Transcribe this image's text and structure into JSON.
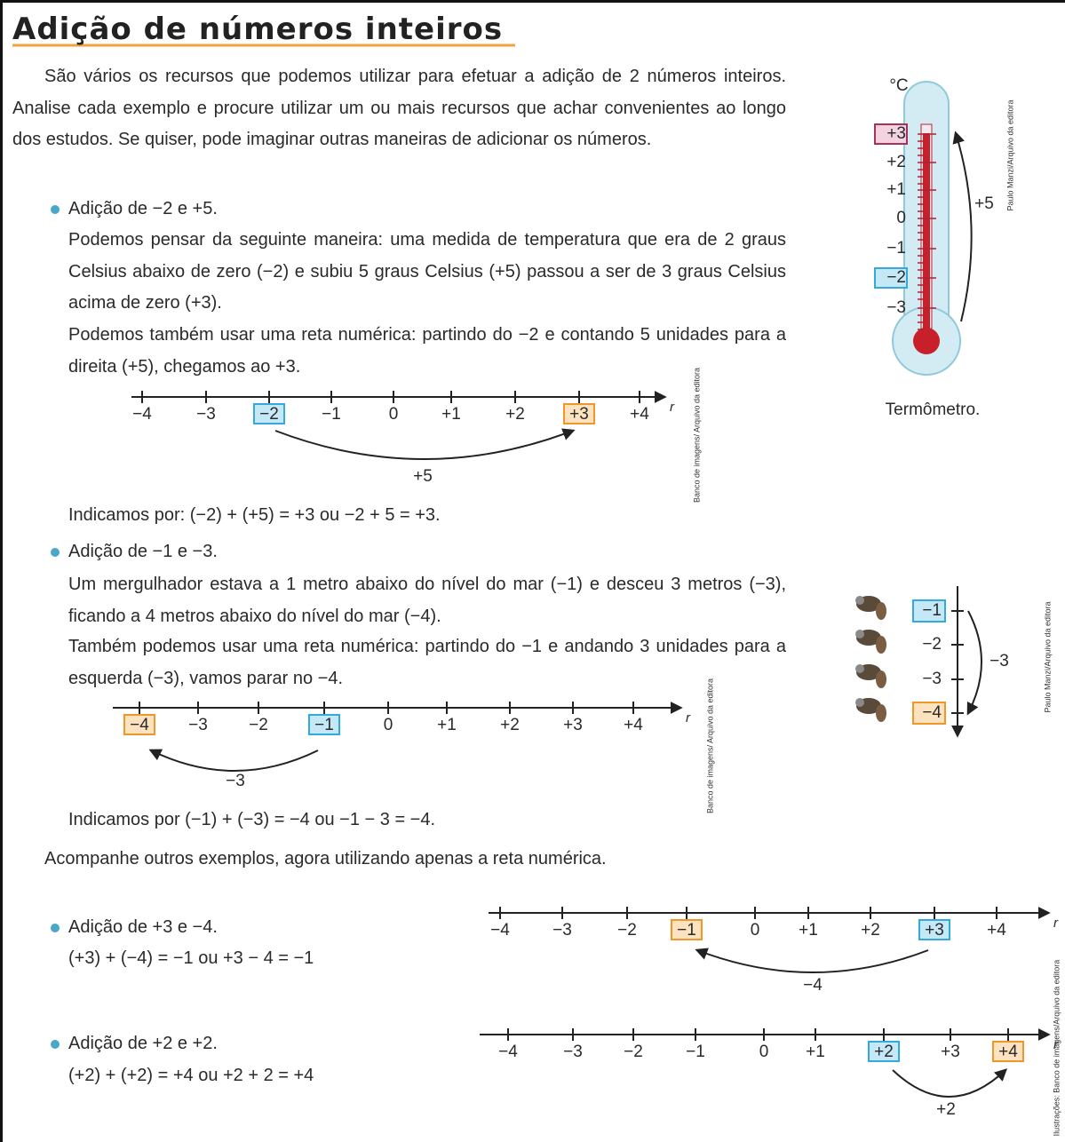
{
  "header": {
    "title": "Adição de números inteiros"
  },
  "intro": "São vários os recursos que podemos utilizar para efetuar a adição de 2 números inteiros. Analise cada exemplo e procure utilizar um ou mais recursos que achar convenientes ao longo dos estudos. Se quiser, pode imaginar outras maneiras de adicionar os números.",
  "examples": [
    {
      "heading": "Adição de −2 e +5.",
      "paragraphs": [
        "Podemos pensar da seguinte maneira: uma medida de temperatura que era de 2 graus Celsius abaixo de zero (−2) e subiu 5 graus Celsius (+5) passou a ser de 3 graus Celsius acima de zero (+3).",
        "Podemos também usar uma reta numérica: partindo do −2 e contando 5 unidades para a direita (+5), chegamos ao +3."
      ],
      "number_line": {
        "ticks": [
          "−4",
          "−3",
          "−2",
          "−1",
          "0",
          "+1",
          "+2",
          "+3",
          "+4"
        ],
        "axis_label": "r",
        "arrow_label": "+5",
        "credit": "Banco de imagens/ Arquivo da editora"
      },
      "result": "Indicamos por: (−2) + (+5) = +3 ou −2 + 5 = +3."
    },
    {
      "heading": "Adição de −1 e −3.",
      "paragraphs": [
        "Um mergulhador estava a 1 metro abaixo do nível do mar (−1) e desceu 3 metros (−3), ficando a 4 metros abaixo do nível do mar (−4).",
        "Também podemos usar uma reta numérica: partindo do −1 e andando 3 unidades para a esquerda (−3), vamos parar no −4."
      ],
      "number_line": {
        "ticks": [
          "−4",
          "−3",
          "−2",
          "−1",
          "0",
          "+1",
          "+2",
          "+3",
          "+4"
        ],
        "axis_label": "r",
        "arrow_label": "−3",
        "credit": "Banco de imagens/ Arquivo da editora"
      },
      "result": "Indicamos por (−1) + (−3) = −4 ou −1 − 3 = −4."
    }
  ],
  "thermometer": {
    "unit": "°C",
    "scale": [
      "+3",
      "+2",
      "+1",
      "0",
      "−1",
      "−2",
      "−3"
    ],
    "arrow_label": "+5",
    "caption": "Termômetro.",
    "credit": "Paulo Manzi/Arquivo da editora"
  },
  "diver": {
    "scale": [
      "−1",
      "−2",
      "−3",
      "−4"
    ],
    "arrow_label": "−3",
    "credit": "Paulo Manzi/Arquivo da editora"
  },
  "transition": "Acompanhe outros exemplos, agora utilizando apenas a reta numérica.",
  "more_examples": [
    {
      "heading": "Adição de +3 e −4.",
      "result": "(+3) + (−4) = −1 ou +3 − 4 = −1",
      "number_line": {
        "ticks": [
          "−4",
          "−3",
          "−2",
          "−1",
          "0",
          "+1",
          "+2",
          "+3",
          "+4"
        ],
        "axis_label": "r",
        "arrow_label": "−4"
      }
    },
    {
      "heading": "Adição de +2 e +2.",
      "result": "(+2) + (+2) = +4 ou +2 + 2 = +4",
      "number_line": {
        "ticks": [
          "−4",
          "−3",
          "−2",
          "−1",
          "0",
          "+1",
          "+2",
          "+3",
          "+4"
        ],
        "axis_label": "r",
        "arrow_label": "+2"
      }
    }
  ],
  "credit": "Ilustrações: Banco de imagens/Arquivo da editora"
}
